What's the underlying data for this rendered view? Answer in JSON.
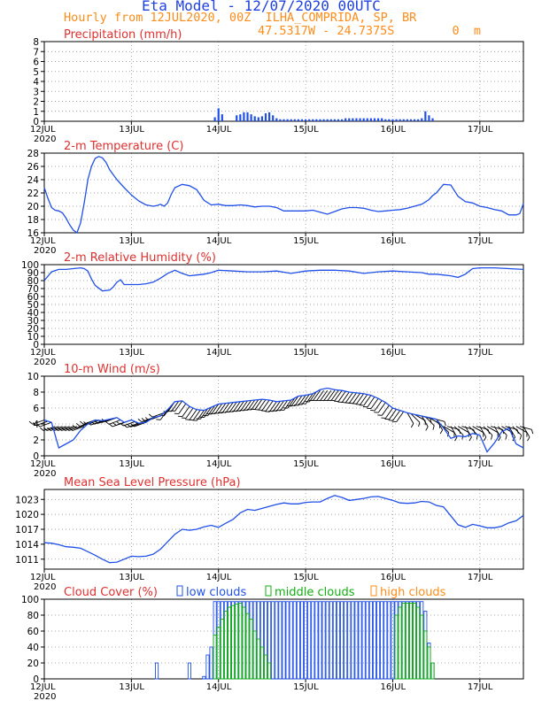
{
  "header": {
    "title": "Eta Model - 12/07/2020 00UTC",
    "subtitle": "Hourly from 12JUL2020, 00Z  ILHA_COMPRIDA, SP, BR",
    "coords": "47.5317W - 24.7375S        0  m"
  },
  "colors": {
    "title": "#2040e0",
    "panel_title": "#e03030",
    "orange": "#ff8c1a",
    "series": "#2050e8",
    "low_clouds": "#2050e8",
    "middle_clouds": "#10b010",
    "high_clouds": "#ff8c1a",
    "wind_barbs": "#000000",
    "grid": "#888888"
  },
  "x_axis": {
    "ticks": [
      "12JUL",
      "13JUL",
      "14JUL",
      "15JUL",
      "16JUL",
      "17JUL"
    ],
    "year_label": "2020",
    "range_hours": [
      0,
      132
    ]
  },
  "chart_data": [
    {
      "id": "precip",
      "type": "bar",
      "title": "Precipitation (mm/h)",
      "ylim": [
        0,
        8
      ],
      "ytick_labels": [
        "0",
        "1",
        "2",
        "3",
        "4",
        "5",
        "6",
        "7",
        "8"
      ],
      "x_hours": [
        47,
        48,
        49,
        53,
        54,
        55,
        56,
        57,
        58,
        59,
        60,
        61,
        62,
        63,
        64,
        65,
        66,
        67,
        68,
        69,
        70,
        71,
        72,
        73,
        74,
        75,
        76,
        77,
        78,
        79,
        80,
        81,
        82,
        83,
        84,
        85,
        86,
        87,
        88,
        89,
        90,
        91,
        92,
        93,
        94,
        95,
        96,
        97,
        98,
        99,
        100,
        101,
        102,
        103,
        104,
        105,
        106,
        107
      ],
      "values": [
        0.4,
        1.3,
        0.7,
        0.6,
        0.7,
        0.9,
        0.9,
        0.7,
        0.5,
        0.4,
        0.5,
        0.8,
        0.9,
        0.6,
        0.3,
        0.2,
        0.2,
        0.2,
        0.2,
        0.2,
        0.2,
        0.2,
        0.2,
        0.2,
        0.2,
        0.2,
        0.2,
        0.2,
        0.2,
        0.2,
        0.2,
        0.2,
        0.2,
        0.3,
        0.3,
        0.3,
        0.3,
        0.3,
        0.3,
        0.3,
        0.3,
        0.3,
        0.3,
        0.3,
        0.2,
        0.2,
        0.2,
        0.2,
        0.2,
        0.2,
        0.2,
        0.2,
        0.2,
        0.2,
        0.3,
        1.0,
        0.6,
        0.3
      ]
    },
    {
      "id": "temp",
      "type": "line",
      "title": "2-m Temperature (C)",
      "ylim": [
        16,
        28
      ],
      "ytick_labels": [
        "16",
        "18",
        "20",
        "22",
        "24",
        "26",
        "28"
      ],
      "x": [
        0,
        1,
        2,
        3,
        4,
        5,
        6,
        7,
        8,
        9,
        10,
        11,
        12,
        13,
        14,
        15,
        16,
        17,
        18,
        20,
        22,
        24,
        26,
        28,
        30,
        31,
        32,
        33,
        34,
        35,
        36,
        38,
        40,
        42,
        44,
        46,
        48,
        50,
        52,
        54,
        56,
        58,
        60,
        62,
        64,
        66,
        68,
        70,
        72,
        74,
        76,
        78,
        80,
        82,
        84,
        86,
        88,
        90,
        92,
        94,
        96,
        98,
        100,
        102,
        104,
        106,
        107,
        108,
        110,
        112,
        114,
        116,
        118,
        120,
        122,
        124,
        126,
        128,
        130,
        131,
        132
      ],
      "values": [
        22.8,
        21.2,
        19.8,
        19.4,
        19.3,
        19.0,
        18.2,
        17.2,
        16.4,
        16.0,
        17.5,
        20.5,
        24.0,
        26.0,
        27.2,
        27.5,
        27.3,
        26.6,
        25.5,
        24.0,
        22.8,
        21.7,
        20.8,
        20.2,
        20.0,
        20.1,
        20.3,
        20.0,
        20.5,
        21.8,
        22.8,
        23.3,
        23.1,
        22.5,
        20.9,
        20.2,
        20.3,
        20.1,
        20.1,
        20.2,
        20.1,
        19.9,
        20.0,
        20.0,
        19.8,
        19.3,
        19.3,
        19.3,
        19.3,
        19.4,
        19.1,
        18.8,
        19.2,
        19.6,
        19.8,
        19.8,
        19.7,
        19.4,
        19.2,
        19.3,
        19.4,
        19.5,
        19.7,
        20.0,
        20.3,
        21.0,
        21.6,
        22.0,
        23.3,
        23.2,
        21.5,
        20.7,
        20.5,
        20.0,
        19.8,
        19.5,
        19.3,
        18.7,
        18.7,
        18.9,
        20.4
      ]
    },
    {
      "id": "rh",
      "type": "line",
      "title": "2-m Relative Humidity (%)",
      "ylim": [
        0,
        100
      ],
      "ytick_labels": [
        "0",
        "10",
        "20",
        "30",
        "40",
        "50",
        "60",
        "70",
        "80",
        "90",
        "100"
      ],
      "x": [
        0,
        2,
        4,
        6,
        8,
        10,
        11,
        12,
        13,
        14,
        16,
        18,
        19,
        20,
        21,
        22,
        24,
        26,
        28,
        30,
        32,
        34,
        36,
        38,
        40,
        42,
        44,
        46,
        48,
        52,
        56,
        60,
        64,
        68,
        72,
        76,
        80,
        84,
        88,
        92,
        96,
        100,
        104,
        106,
        108,
        110,
        112,
        114,
        116,
        118,
        120,
        124,
        128,
        132
      ],
      "values": [
        80,
        91,
        94,
        94,
        95,
        96,
        95,
        92,
        82,
        74,
        67,
        68,
        72,
        78,
        81,
        75,
        75,
        75,
        76,
        78,
        83,
        89,
        93,
        89,
        86,
        87,
        88,
        90,
        93,
        92,
        91,
        91,
        92,
        89,
        92,
        93,
        93,
        92,
        89,
        91,
        92,
        91,
        90,
        88,
        88,
        87,
        86,
        84,
        88,
        95,
        96,
        96,
        95,
        94
      ]
    },
    {
      "id": "wind",
      "type": "line",
      "title": "10-m Wind (m/s)",
      "ylim": [
        0,
        10
      ],
      "ytick_labels": [
        "0",
        "2",
        "4",
        "6",
        "8",
        "10"
      ],
      "x": [
        0,
        2,
        4,
        6,
        8,
        10,
        12,
        14,
        16,
        18,
        20,
        22,
        24,
        26,
        28,
        30,
        32,
        34,
        36,
        38,
        40,
        42,
        44,
        46,
        48,
        50,
        52,
        54,
        56,
        58,
        60,
        62,
        64,
        66,
        68,
        70,
        72,
        74,
        76,
        78,
        80,
        82,
        84,
        86,
        88,
        90,
        92,
        94,
        96,
        98,
        100,
        102,
        104,
        106,
        108,
        110,
        112,
        114,
        116,
        118,
        120,
        122,
        124,
        126,
        128,
        130,
        132
      ],
      "values": [
        4.5,
        4.2,
        1.0,
        1.5,
        2.0,
        3.2,
        4.0,
        4.5,
        4.4,
        4.6,
        4.8,
        4.2,
        4.5,
        4.1,
        4.2,
        4.8,
        5.0,
        5.8,
        6.8,
        6.9,
        6.2,
        5.8,
        5.7,
        6.1,
        6.5,
        6.6,
        6.7,
        6.8,
        6.9,
        7.0,
        7.1,
        7.0,
        6.8,
        6.9,
        7.0,
        7.5,
        7.6,
        7.8,
        8.3,
        8.5,
        8.3,
        8.2,
        8.0,
        7.9,
        7.8,
        7.6,
        7.2,
        6.7,
        6.0,
        5.7,
        5.4,
        5.2,
        5.0,
        4.8,
        4.6,
        3.5,
        2.2,
        2.5,
        2.4,
        2.8,
        2.6,
        0.5,
        1.6,
        3.0,
        3.5,
        1.5,
        1.0
      ],
      "barb_note": "wind barbs from model, every hour"
    },
    {
      "id": "mslp",
      "type": "line",
      "title": "Mean Sea Level Pressure (hPa)",
      "ylim": [
        1009,
        1025
      ],
      "ytick_labels": [
        "1011",
        "1014",
        "1017",
        "1020",
        "1023"
      ],
      "ytick_values": [
        1011,
        1014,
        1017,
        1020,
        1023
      ],
      "x": [
        0,
        2,
        4,
        6,
        8,
        10,
        12,
        14,
        16,
        18,
        20,
        22,
        24,
        26,
        28,
        30,
        32,
        34,
        36,
        38,
        40,
        42,
        44,
        46,
        48,
        50,
        52,
        54,
        56,
        58,
        60,
        62,
        64,
        66,
        68,
        70,
        72,
        74,
        76,
        78,
        80,
        82,
        84,
        86,
        88,
        90,
        92,
        94,
        96,
        98,
        100,
        102,
        104,
        106,
        108,
        110,
        112,
        114,
        116,
        118,
        120,
        122,
        124,
        126,
        128,
        130,
        132
      ],
      "values": [
        1014.3,
        1014.2,
        1013.9,
        1013.5,
        1013.4,
        1013.2,
        1012.5,
        1011.8,
        1011.0,
        1010.3,
        1010.4,
        1011.0,
        1011.6,
        1011.5,
        1011.6,
        1012.0,
        1013.0,
        1014.5,
        1016.0,
        1017.0,
        1016.8,
        1017.0,
        1017.5,
        1017.8,
        1017.4,
        1018.2,
        1019.0,
        1020.3,
        1021.0,
        1020.8,
        1021.2,
        1021.6,
        1022.0,
        1022.3,
        1022.1,
        1022.1,
        1022.4,
        1022.5,
        1022.5,
        1023.2,
        1023.8,
        1023.4,
        1022.8,
        1023.0,
        1023.2,
        1023.5,
        1023.6,
        1023.2,
        1022.8,
        1022.3,
        1022.2,
        1022.3,
        1022.6,
        1022.5,
        1021.8,
        1021.5,
        1019.7,
        1017.9,
        1017.4,
        1018.0,
        1017.7,
        1017.3,
        1017.3,
        1017.6,
        1018.3,
        1018.7,
        1019.8
      ]
    },
    {
      "id": "cloud",
      "type": "bar",
      "title": "Cloud Cover (%)",
      "ylim": [
        0,
        100
      ],
      "ytick_labels": [
        "0",
        "20",
        "40",
        "60",
        "80",
        "100"
      ],
      "legend": {
        "low": "low clouds",
        "middle": "middle clouds",
        "high": "high clouds"
      },
      "low": {
        "x_hours": [
          31,
          40,
          44,
          45,
          46,
          47,
          48,
          49,
          50,
          51,
          52,
          53,
          54,
          55,
          56,
          57,
          58,
          59,
          60,
          61,
          62,
          63,
          64,
          65,
          66,
          67,
          68,
          69,
          70,
          71,
          72,
          73,
          74,
          75,
          76,
          77,
          78,
          79,
          80,
          81,
          82,
          83,
          84,
          85,
          86,
          87,
          88,
          89,
          90,
          91,
          92,
          93,
          94,
          95,
          96,
          97,
          98,
          99,
          100,
          101,
          102,
          103,
          104,
          105,
          106,
          107
        ],
        "values": [
          20,
          20,
          3,
          30,
          40,
          97,
          97,
          97,
          97,
          97,
          97,
          97,
          97,
          97,
          97,
          97,
          97,
          97,
          97,
          97,
          97,
          97,
          97,
          97,
          97,
          97,
          97,
          97,
          97,
          97,
          97,
          97,
          97,
          97,
          97,
          97,
          97,
          97,
          97,
          97,
          97,
          97,
          97,
          97,
          97,
          97,
          97,
          97,
          97,
          97,
          97,
          97,
          97,
          97,
          97,
          97,
          97,
          97,
          97,
          97,
          97,
          97,
          97,
          85,
          45,
          20
        ]
      },
      "middle": {
        "x_hours": [
          47,
          48,
          49,
          50,
          51,
          52,
          53,
          54,
          55,
          56,
          57,
          58,
          59,
          60,
          61,
          62,
          97,
          98,
          99,
          100,
          101,
          102,
          103,
          104,
          105,
          106,
          107
        ],
        "values": [
          55,
          65,
          75,
          85,
          90,
          92,
          94,
          95,
          90,
          82,
          75,
          60,
          50,
          40,
          30,
          20,
          80,
          90,
          95,
          95,
          95,
          95,
          90,
          80,
          60,
          40,
          20
        ]
      },
      "high": {
        "x_hours": [],
        "values": []
      }
    }
  ]
}
